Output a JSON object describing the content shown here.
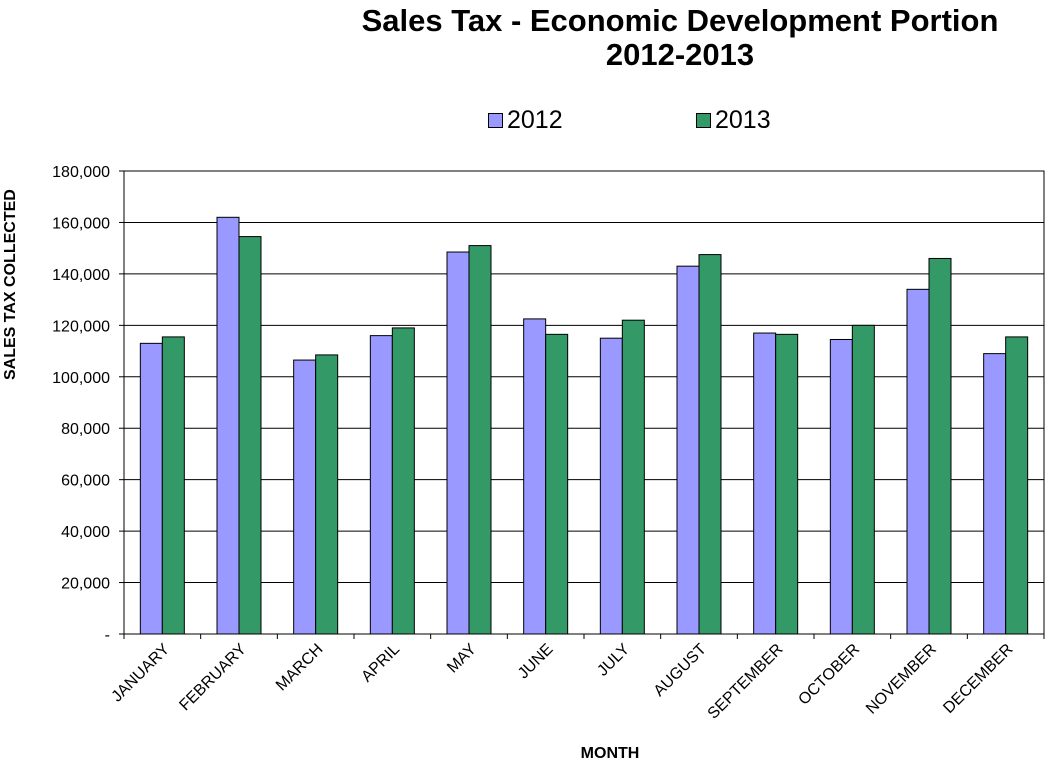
{
  "chart_data": {
    "type": "bar",
    "title": [
      "Sales Tax - Economic Development Portion",
      "2012-2013"
    ],
    "xlabel": "MONTH",
    "ylabel": "SALES TAX COLLECTED",
    "ylim": [
      0,
      180000
    ],
    "yticks": [
      "-",
      "20,000",
      "40,000",
      "60,000",
      "80,000",
      "100,000",
      "120,000",
      "140,000",
      "160,000",
      "180,000"
    ],
    "grid": "horizontal",
    "legend_position": "top",
    "categories": [
      "JANUARY",
      "FEBRUARY",
      "MARCH",
      "APRIL",
      "MAY",
      "JUNE",
      "JULY",
      "AUGUST",
      "SEPTEMBER",
      "OCTOBER",
      "NOVEMBER",
      "DECEMBER"
    ],
    "series": [
      {
        "name": "2012",
        "color": "#9999ff",
        "values": [
          113000,
          162000,
          106500,
          116000,
          148500,
          122500,
          115000,
          143000,
          117000,
          114500,
          134000,
          109000
        ]
      },
      {
        "name": "2013",
        "color": "#339966",
        "values": [
          115500,
          154500,
          108500,
          119000,
          151000,
          116500,
          122000,
          147500,
          116500,
          120000,
          146000,
          115500
        ]
      }
    ]
  }
}
